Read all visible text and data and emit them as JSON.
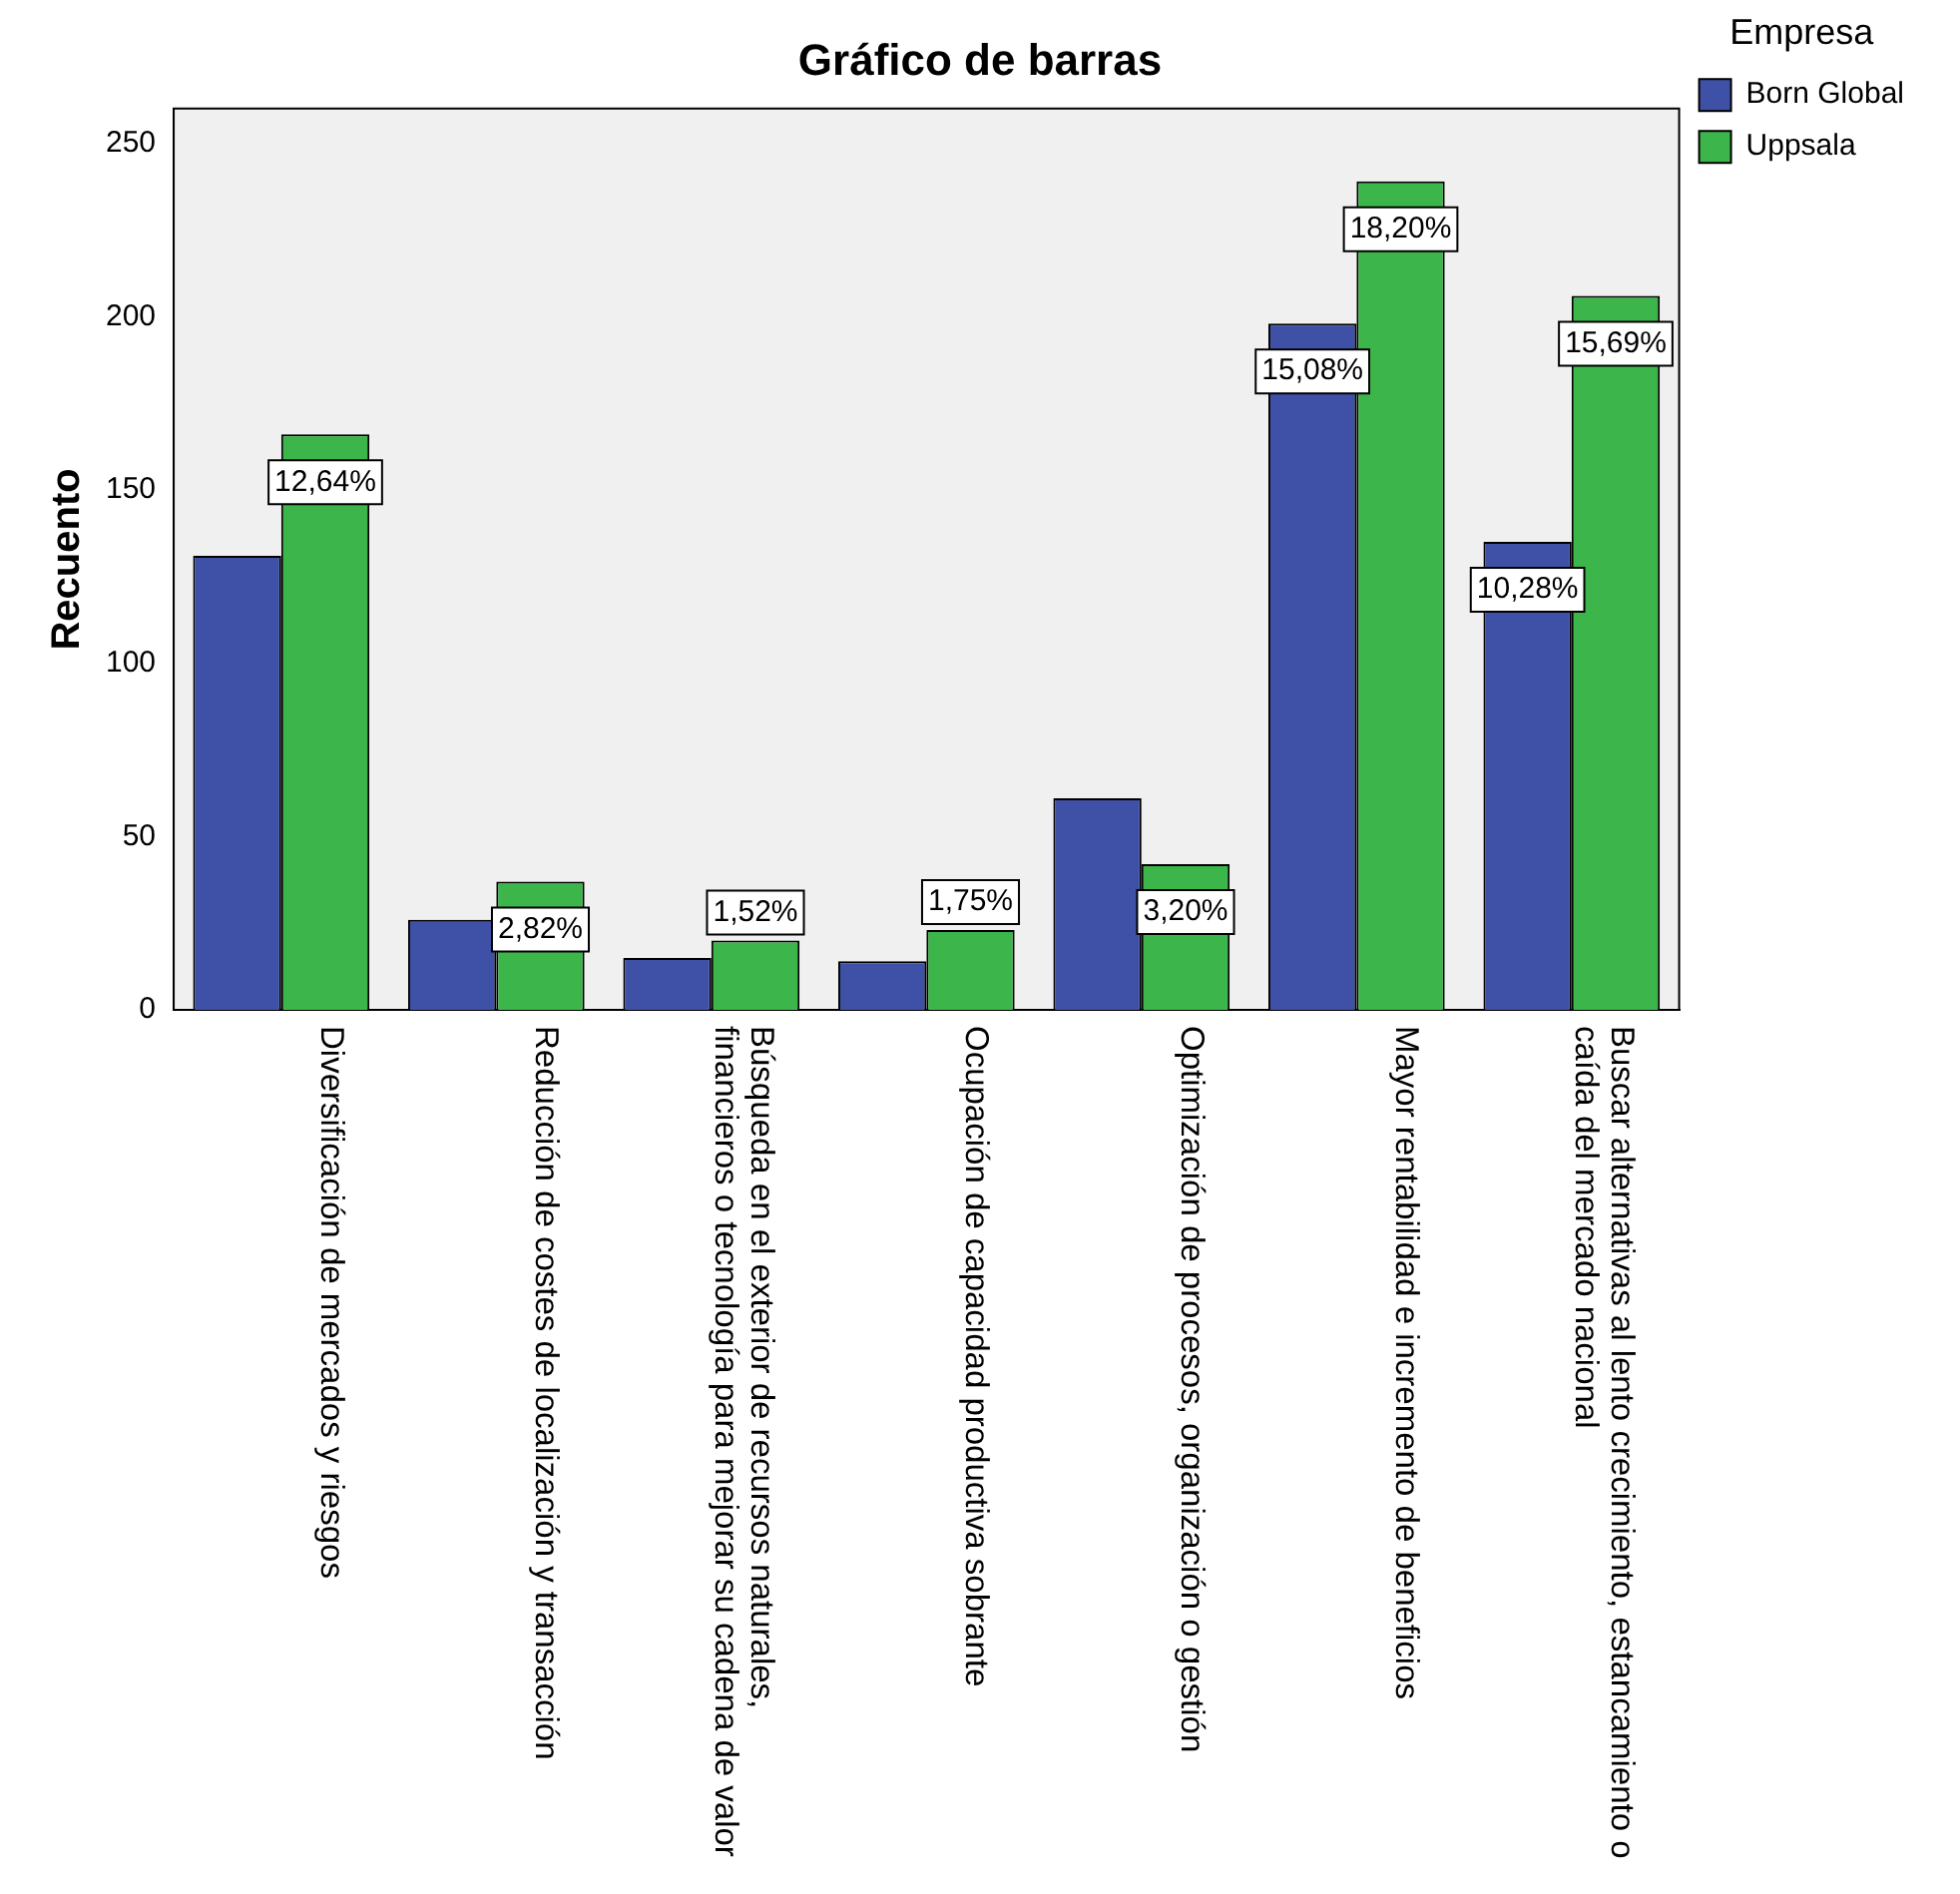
{
  "chart_data": {
    "type": "bar",
    "title": "Gráfico de barras",
    "ylabel": "Recuento",
    "legend_title": "Empresa",
    "categories": [
      "Diversificación de mercados y riesgos",
      "Reducción de costes de localización y transacción",
      "Búsqueda en el exterior de recursos naturales, financieros o tecnología para mejorar su cadena de valor",
      "Ocupación de capacidad productiva sobrante",
      "Optimización de procesos, organización o gestión",
      "Mayor rentabilidad e incremento de beneficios",
      "Buscar alternativas al lento crecimiento, estancamiento o caída del mercado nacional"
    ],
    "series": [
      {
        "name": "Born Global",
        "color": "#3f51a6",
        "values": [
          131,
          26,
          15,
          14,
          61,
          198,
          135
        ]
      },
      {
        "name": "Uppsala",
        "color": "#3cb54a",
        "values": [
          166,
          37,
          20,
          23,
          42,
          239,
          206
        ]
      }
    ],
    "annotations": [
      "12,64%",
      "2,82%",
      "1,52%",
      "1,75%",
      "3,20%",
      "15,08%",
      "18,20%",
      "10,28%",
      "15,69%"
    ],
    "ylim": [
      0,
      260
    ],
    "yticks": [
      0,
      50,
      100,
      150,
      200,
      250
    ],
    "grid": false,
    "legend": "right"
  }
}
